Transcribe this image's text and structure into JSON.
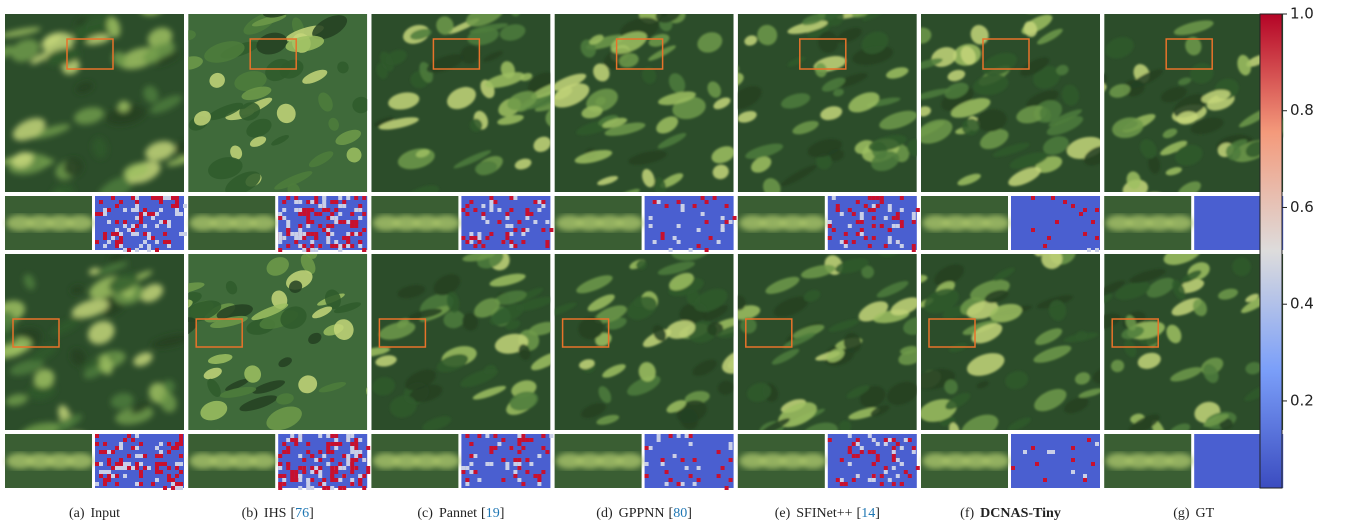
{
  "figure": {
    "panels": [
      {
        "label": "(a)",
        "name": "Input"
      },
      {
        "label": "(b)",
        "name": "IHS",
        "cite": [
          "[",
          "76",
          "]"
        ]
      },
      {
        "label": "(c)",
        "name": "Pannet",
        "cite": [
          "[",
          "19",
          "]"
        ]
      },
      {
        "label": "(d)",
        "name": "GPPNN",
        "cite": [
          "[",
          "80",
          "]"
        ]
      },
      {
        "label": "(e)",
        "name": "SFINet++",
        "cite": [
          "[",
          "14",
          "]"
        ]
      },
      {
        "label": "(f)",
        "name": "DCNAS-Tiny",
        "bold": true
      },
      {
        "label": "(g)",
        "name": "GT"
      }
    ],
    "colorbar": {
      "lim": [
        0.02,
        1
      ],
      "ticks": [
        0.2,
        0.4,
        0.6,
        0.8,
        {
          "value": 1,
          "label": "1.0"
        }
      ]
    }
  }
}
